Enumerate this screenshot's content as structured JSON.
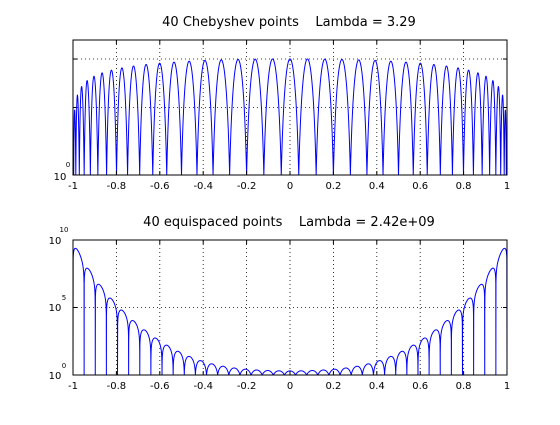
{
  "chart_data": [
    {
      "type": "line",
      "title": "40 Chebyshev points    Lambda = 3.29",
      "xlabel": "",
      "ylabel": "",
      "xlim": [
        -1,
        1
      ],
      "xticks": [
        "-1",
        "-0.8",
        "-0.6",
        "-0.4",
        "-0.2",
        "0",
        "0.2",
        "0.4",
        "0.6",
        "0.8",
        "1"
      ],
      "yscale": "log",
      "ylim": [
        1,
        4
      ],
      "yticks": [
        {
          "base": "10",
          "exp": "0"
        }
      ],
      "grid": true,
      "line_color": "#0000ff",
      "n_points": 40,
      "lebesgue_constant": 3.29,
      "peak_level": 3.29
    },
    {
      "type": "line",
      "title": "40 equispaced points    Lambda = 2.42e+09",
      "xlabel": "",
      "ylabel": "",
      "xlim": [
        -1,
        1
      ],
      "xticks": [
        "-1",
        "-0.8",
        "-0.6",
        "-0.4",
        "-0.2",
        "0",
        "0.2",
        "0.4",
        "0.6",
        "0.8",
        "1"
      ],
      "yscale": "log",
      "ylim": [
        1,
        10000000000
      ],
      "yticks": [
        {
          "base": "10",
          "exp": "0"
        },
        {
          "base": "10",
          "exp": "5"
        },
        {
          "base": "10",
          "exp": "10"
        }
      ],
      "grid": true,
      "line_color": "#0000ff",
      "n_points": 40,
      "lebesgue_constant": 2420000000
    }
  ]
}
